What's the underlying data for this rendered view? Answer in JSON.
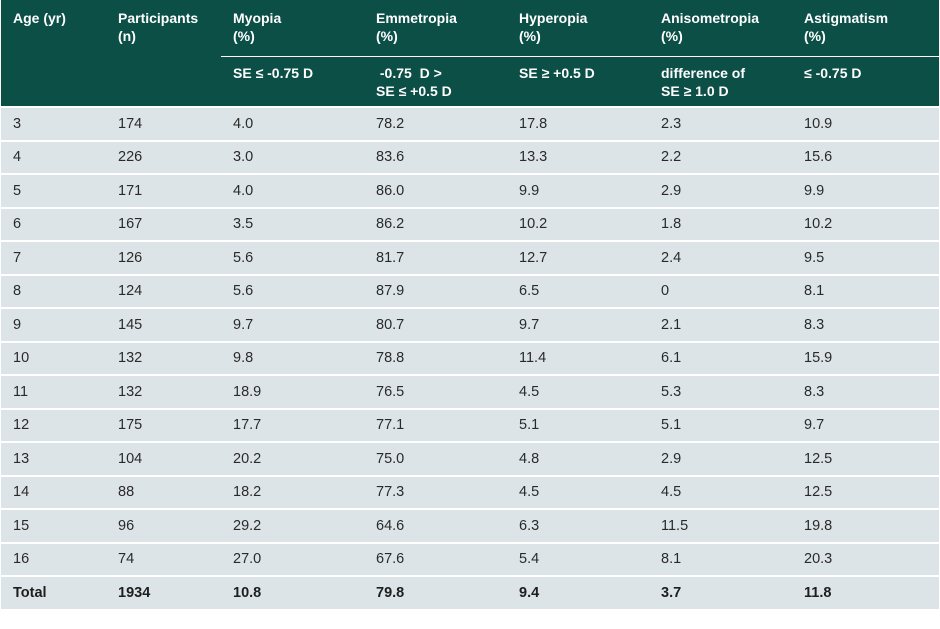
{
  "table": {
    "headers": [
      {
        "title": "Age (yr)",
        "sub": ""
      },
      {
        "title": "Participants\n(n)",
        "sub": ""
      },
      {
        "title": "Myopia\n(%)",
        "sub": "SE ≤ -0.75 D"
      },
      {
        "title": "Emmetropia\n(%)",
        "sub": " -0.75  D >\nSE ≤ +0.5 D"
      },
      {
        "title": "Hyperopia\n(%)",
        "sub": "SE ≥ +0.5 D"
      },
      {
        "title": "Anisometropia\n(%)",
        "sub": "difference of\nSE ≥ 1.0 D"
      },
      {
        "title": "Astigmatism\n(%)",
        "sub": "≤ -0.75 D"
      }
    ],
    "rows": [
      [
        "3",
        "174",
        "4.0",
        "78.2",
        "17.8",
        "2.3",
        "10.9"
      ],
      [
        "4",
        "226",
        "3.0",
        "83.6",
        "13.3",
        "2.2",
        "15.6"
      ],
      [
        "5",
        "171",
        "4.0",
        "86.0",
        "9.9",
        "2.9",
        "9.9"
      ],
      [
        "6",
        "167",
        "3.5",
        "86.2",
        "10.2",
        "1.8",
        "10.2"
      ],
      [
        "7",
        "126",
        "5.6",
        "81.7",
        "12.7",
        "2.4",
        "9.5"
      ],
      [
        "8",
        "124",
        "5.6",
        "87.9",
        "6.5",
        "0",
        "8.1"
      ],
      [
        "9",
        "145",
        "9.7",
        "80.7",
        "9.7",
        "2.1",
        "8.3"
      ],
      [
        "10",
        "132",
        "9.8",
        "78.8",
        "11.4",
        "6.1",
        "15.9"
      ],
      [
        "11",
        "132",
        "18.9",
        "76.5",
        "4.5",
        "5.3",
        "8.3"
      ],
      [
        "12",
        "175",
        "17.7",
        "77.1",
        "5.1",
        "5.1",
        "9.7"
      ],
      [
        "13",
        "104",
        "20.2",
        "75.0",
        "4.8",
        "2.9",
        "12.5"
      ],
      [
        "14",
        "88",
        "18.2",
        "77.3",
        "4.5",
        "4.5",
        "12.5"
      ],
      [
        "15",
        "96",
        "29.2",
        "64.6",
        "6.3",
        "11.5",
        "19.8"
      ],
      [
        "16",
        "74",
        "27.0",
        "67.6",
        "5.4",
        "8.1",
        "20.3"
      ]
    ],
    "total": [
      "Total",
      "1934",
      "10.8",
      "79.8",
      "9.4",
      "3.7",
      "11.8"
    ]
  }
}
